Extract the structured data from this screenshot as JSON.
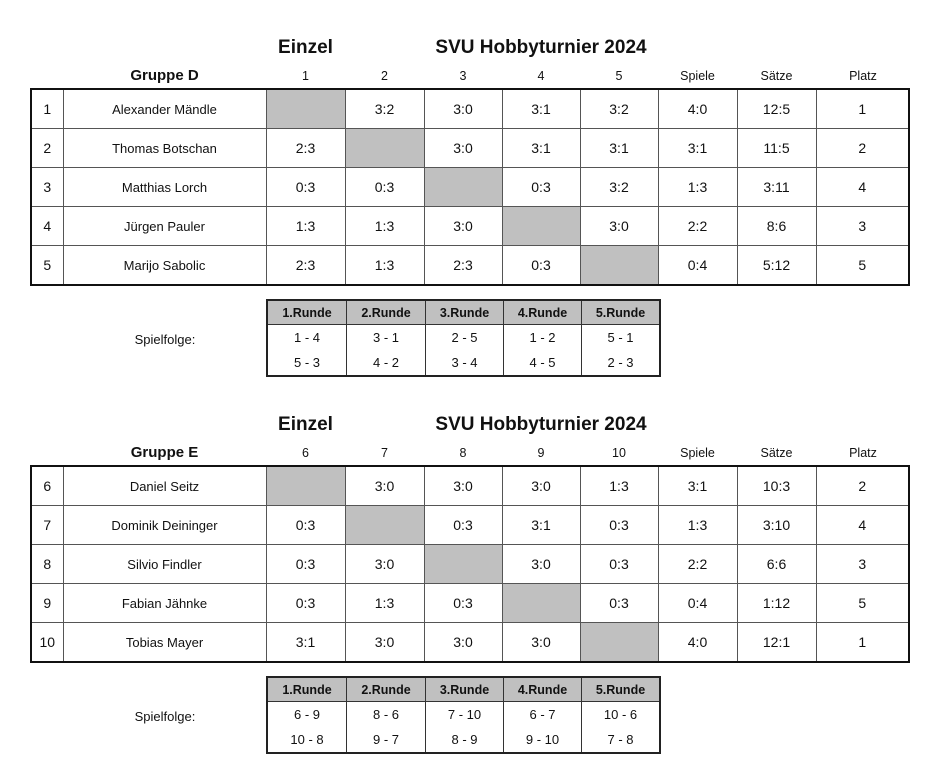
{
  "colors": {
    "self_cell": "#c0c0c0",
    "header_bg": "#c0c0c0"
  },
  "groups": [
    {
      "event": "Einzel",
      "title": "SVU Hobbyturnier 2024",
      "group_name": "Gruppe D",
      "columns": [
        "1",
        "2",
        "3",
        "4",
        "5",
        "Spiele",
        "Sätze",
        "Platz"
      ],
      "rows": [
        {
          "no": "1",
          "name": "Alexander Mändle",
          "results": [
            "",
            "3:2",
            "3:0",
            "3:1",
            "3:2"
          ],
          "spiele": "4:0",
          "saetze": "12:5",
          "platz": "1"
        },
        {
          "no": "2",
          "name": "Thomas Botschan",
          "results": [
            "2:3",
            "",
            "3:0",
            "3:1",
            "3:1"
          ],
          "spiele": "3:1",
          "saetze": "11:5",
          "platz": "2"
        },
        {
          "no": "3",
          "name": "Matthias Lorch",
          "results": [
            "0:3",
            "0:3",
            "",
            "0:3",
            "3:2"
          ],
          "spiele": "1:3",
          "saetze": "3:11",
          "platz": "4"
        },
        {
          "no": "4",
          "name": "Jürgen Pauler",
          "results": [
            "1:3",
            "1:3",
            "3:0",
            "",
            "3:0"
          ],
          "spiele": "2:2",
          "saetze": "8:6",
          "platz": "3"
        },
        {
          "no": "5",
          "name": "Marijo Sabolic",
          "results": [
            "2:3",
            "1:3",
            "2:3",
            "0:3",
            ""
          ],
          "spiele": "0:4",
          "saetze": "5:12",
          "platz": "5"
        }
      ],
      "schedule_label": "Spielfolge:",
      "rounds": [
        {
          "label": "1.Runde",
          "games": [
            "1 - 4",
            "5 - 3"
          ]
        },
        {
          "label": "2.Runde",
          "games": [
            "3 - 1",
            "4 - 2"
          ]
        },
        {
          "label": "3.Runde",
          "games": [
            "2 - 5",
            "3 - 4"
          ]
        },
        {
          "label": "4.Runde",
          "games": [
            "1 - 2",
            "4 - 5"
          ]
        },
        {
          "label": "5.Runde",
          "games": [
            "5 - 1",
            "2 - 3"
          ]
        }
      ]
    },
    {
      "event": "Einzel",
      "title": "SVU Hobbyturnier 2024",
      "group_name": "Gruppe E",
      "columns": [
        "6",
        "7",
        "8",
        "9",
        "10",
        "Spiele",
        "Sätze",
        "Platz"
      ],
      "rows": [
        {
          "no": "6",
          "name": "Daniel Seitz",
          "results": [
            "",
            "3:0",
            "3:0",
            "3:0",
            "1:3"
          ],
          "spiele": "3:1",
          "saetze": "10:3",
          "platz": "2"
        },
        {
          "no": "7",
          "name": "Dominik Deininger",
          "results": [
            "0:3",
            "",
            "0:3",
            "3:1",
            "0:3"
          ],
          "spiele": "1:3",
          "saetze": "3:10",
          "platz": "4"
        },
        {
          "no": "8",
          "name": "Silvio Findler",
          "results": [
            "0:3",
            "3:0",
            "",
            "3:0",
            "0:3"
          ],
          "spiele": "2:2",
          "saetze": "6:6",
          "platz": "3"
        },
        {
          "no": "9",
          "name": "Fabian Jähnke",
          "results": [
            "0:3",
            "1:3",
            "0:3",
            "",
            "0:3"
          ],
          "spiele": "0:4",
          "saetze": "1:12",
          "platz": "5"
        },
        {
          "no": "10",
          "name": "Tobias Mayer",
          "results": [
            "3:1",
            "3:0",
            "3:0",
            "3:0",
            ""
          ],
          "spiele": "4:0",
          "saetze": "12:1",
          "platz": "1"
        }
      ],
      "schedule_label": "Spielfolge:",
      "rounds": [
        {
          "label": "1.Runde",
          "games": [
            "6 - 9",
            "10 - 8"
          ]
        },
        {
          "label": "2.Runde",
          "games": [
            "8 - 6",
            "9 - 7"
          ]
        },
        {
          "label": "3.Runde",
          "games": [
            "7 - 10",
            "8 - 9"
          ]
        },
        {
          "label": "4.Runde",
          "games": [
            "6 - 7",
            "9 - 10"
          ]
        },
        {
          "label": "5.Runde",
          "games": [
            "10 - 6",
            "7 - 8"
          ]
        }
      ]
    }
  ]
}
